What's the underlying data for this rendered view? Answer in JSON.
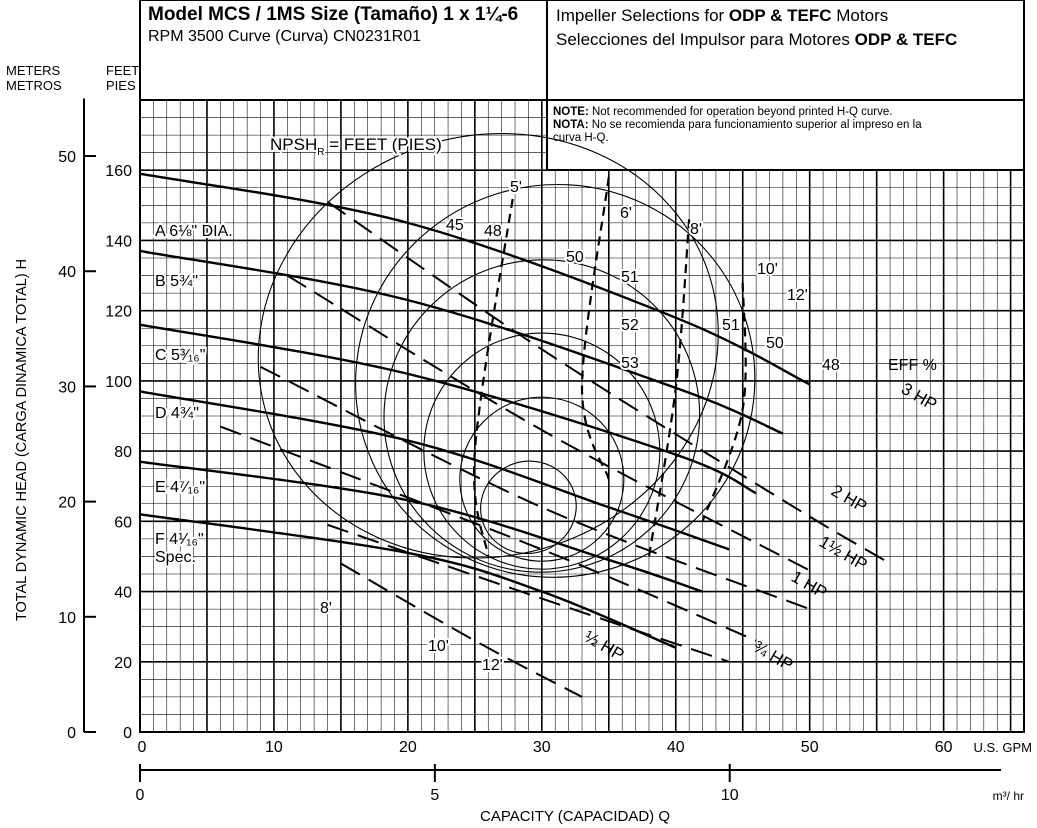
{
  "header": {
    "model_line": "Model MCS / 1MS Size (Tamaño) 1 x 1¼-6",
    "rpm_line": "RPM 3500 Curve (Curva) CN0231R01",
    "impeller_line_1_prefix": "Impeller Selections for ",
    "impeller_line_1_bold": "ODP & TEFC",
    "impeller_line_1_suffix": " Motors",
    "impeller_line_2_prefix": "Selecciones del Impulsor para Motores ",
    "impeller_line_2_bold": "ODP & TEFC",
    "note_en_label": "NOTE:",
    "note_en_text": " Not recommended for operation beyond printed H-Q curve.",
    "note_es_label": "NOTA:",
    "note_es_text_1": " No se recomienda para funcionamiento superior al impreso en la",
    "note_es_text_2": "curva H-Q.",
    "meters_label_1": "METERS",
    "meters_label_2": "METROS",
    "feet_label_1": "FEET",
    "feet_label_2": "PIES"
  },
  "chart_data": {
    "type": "line",
    "title": "Model MCS / 1MS Size (Tamaño) 1 x 1¼-6",
    "subtitle": "RPM 3500 Curve (Curva) CN0231R01",
    "xlabel": "CAPACITY (CAPACIDAD) Q",
    "ylabel": "TOTAL DYNAMIC HEAD (CARGA DINAMICA TOTAL) H",
    "x_unit_gpm": "U.S. GPM",
    "x_unit_m3hr": "m³/ hr",
    "xlim": [
      0,
      66
    ],
    "ylim": [
      0,
      180
    ],
    "x_ticks_gpm": [
      "0",
      "10",
      "20",
      "30",
      "40",
      "50",
      "60"
    ],
    "x_ticks_m3hr": [
      "0",
      "5",
      "10"
    ],
    "y_ticks_feet": [
      "0",
      "20",
      "40",
      "60",
      "80",
      "100",
      "120",
      "140",
      "160"
    ],
    "y_ticks_meters": [
      "0",
      "10",
      "20",
      "30",
      "40",
      "50"
    ],
    "grid": true,
    "npsh_title": "NPSH",
    "npsh_sub": "R",
    "npsh_suffix": " = FEET (PIES)",
    "eff_label": "EFF %",
    "impeller_labels": [
      "A 6⅛\" DIA.",
      "B 5¾\"",
      "C 5³⁄₁₆\"",
      "D 4¾\"",
      "E 4⁷⁄₁₆\"",
      "F 4¹⁄₁₆\"",
      "Spec."
    ],
    "hp_labels": [
      "3 HP",
      "2 HP",
      "1½ HP",
      "1 HP",
      "¾ HP",
      "½ HP"
    ],
    "npsh_labels": [
      "5'",
      "6'",
      "8'",
      "10'",
      "12'",
      "8'",
      "10'",
      "12'"
    ],
    "eff_curve_labels": [
      "45",
      "48",
      "50",
      "51",
      "52",
      "53",
      "51",
      "50",
      "48"
    ],
    "head_curves": [
      {
        "name": "A",
        "x": [
          0,
          20,
          40,
          50
        ],
        "y": [
          159,
          145,
          118,
          99
        ]
      },
      {
        "name": "B",
        "x": [
          0,
          20,
          40,
          48
        ],
        "y": [
          137,
          123,
          98,
          85
        ]
      },
      {
        "name": "C",
        "x": [
          0,
          20,
          40,
          46
        ],
        "y": [
          116,
          102,
          79,
          68
        ]
      },
      {
        "name": "D",
        "x": [
          0,
          20,
          35,
          44
        ],
        "y": [
          97,
          83,
          64,
          52
        ]
      },
      {
        "name": "E",
        "x": [
          0,
          20,
          35,
          42
        ],
        "y": [
          77,
          66,
          49,
          40
        ]
      },
      {
        "name": "F",
        "x": [
          0,
          20,
          30,
          40
        ],
        "y": [
          62,
          51,
          40,
          24
        ]
      }
    ],
    "hp_curves": [
      {
        "name": "3 HP",
        "x": [
          14,
          30,
          48,
          56
        ],
        "y": [
          151,
          109,
          66,
          48
        ]
      },
      {
        "name": "2 HP",
        "x": [
          11,
          30,
          50
        ],
        "y": [
          130,
          86,
          46
        ]
      },
      {
        "name": "1½ HP",
        "x": [
          9,
          30,
          50
        ],
        "y": [
          104,
          64,
          35
        ]
      },
      {
        "name": "1 HP",
        "x": [
          6,
          30,
          46
        ],
        "y": [
          87,
          52,
          26
        ]
      },
      {
        "name": "¾ HP",
        "x": [
          14,
          30,
          44
        ],
        "y": [
          59,
          38,
          20
        ]
      },
      {
        "name": "½ HP",
        "x": [
          15,
          25,
          33
        ],
        "y": [
          48,
          26,
          10
        ]
      }
    ],
    "npsh_curves": [
      {
        "name": "5'",
        "x": [
          28,
          25,
          26
        ],
        "y": [
          156,
          80,
          50
        ]
      },
      {
        "name": "6'",
        "x": [
          35,
          33,
          35
        ],
        "y": [
          158,
          98,
          72
        ]
      },
      {
        "name": "8'",
        "x": [
          41,
          40,
          38
        ],
        "y": [
          146,
          98,
          50
        ]
      },
      {
        "name": "10'",
        "x": [
          45,
          45,
          42
        ],
        "y": [
          128,
          92,
          60
        ]
      }
    ],
    "eff_islands": [
      {
        "name": "53",
        "cx": 29,
        "cy": 64
      },
      {
        "name": "52",
        "cx": 30,
        "cy": 72
      },
      {
        "name": "51",
        "cx": 30,
        "cy": 80
      },
      {
        "name": "50",
        "cx": 30,
        "cy": 90
      },
      {
        "name": "48",
        "cx": 31,
        "cy": 100
      },
      {
        "name": "45",
        "cx": 26,
        "cy": 110
      }
    ],
    "colors": {
      "line": "#000000",
      "grid": "#000000",
      "background": "#ffffff"
    }
  }
}
